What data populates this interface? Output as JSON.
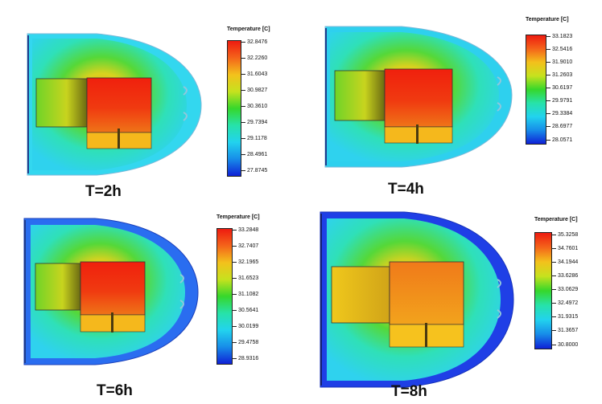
{
  "figure": {
    "panels": [
      {
        "time_label": "T=2h",
        "legend_title": "Temperature [C]",
        "ticks": [
          "32.8476",
          "32.2260",
          "31.6043",
          "30.9827",
          "30.3610",
          "29.7394",
          "29.1178",
          "28.4961",
          "27.8745"
        ],
        "outer_color": "#33d7ef"
      },
      {
        "time_label": "T=4h",
        "legend_title": "Temperature [C]",
        "ticks": [
          "33.1823",
          "32.5416",
          "31.9010",
          "31.2603",
          "30.6197",
          "29.9791",
          "29.3384",
          "28.6977",
          "28.0571"
        ],
        "outer_color": "#2ed0ee"
      },
      {
        "time_label": "T=6h",
        "legend_title": "Temperature [C]",
        "ticks": [
          "33.2848",
          "32.7407",
          "32.1965",
          "31.6523",
          "31.1082",
          "30.5641",
          "30.0199",
          "29.4758",
          "28.9316"
        ],
        "outer_color": "#2a6df0"
      },
      {
        "time_label": "T=8h",
        "legend_title": "Temperature [C]",
        "ticks": [
          "35.3258",
          "34.7601",
          "34.1944",
          "33.6286",
          "33.0629",
          "32.4972",
          "31.9315",
          "31.3657",
          "30.8000"
        ],
        "outer_color": "#1f3fe6"
      }
    ]
  }
}
